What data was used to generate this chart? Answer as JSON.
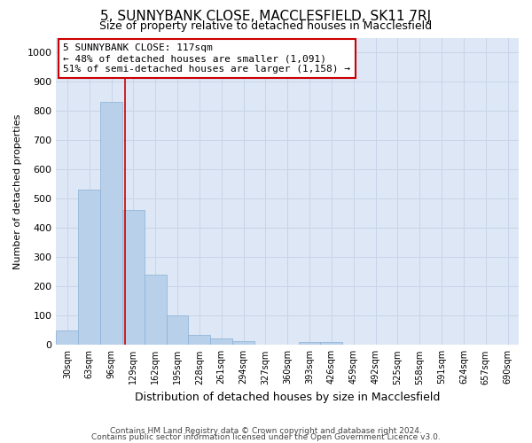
{
  "title": "5, SUNNYBANK CLOSE, MACCLESFIELD, SK11 7RJ",
  "subtitle": "Size of property relative to detached houses in Macclesfield",
  "xlabel": "Distribution of detached houses by size in Macclesfield",
  "ylabel": "Number of detached properties",
  "bin_labels": [
    "30sqm",
    "63sqm",
    "96sqm",
    "129sqm",
    "162sqm",
    "195sqm",
    "228sqm",
    "261sqm",
    "294sqm",
    "327sqm",
    "360sqm",
    "393sqm",
    "426sqm",
    "459sqm",
    "492sqm",
    "525sqm",
    "558sqm",
    "591sqm",
    "624sqm",
    "657sqm",
    "690sqm"
  ],
  "bar_values": [
    50,
    530,
    830,
    460,
    240,
    100,
    35,
    22,
    12,
    0,
    0,
    10,
    10,
    0,
    0,
    0,
    0,
    0,
    0,
    0,
    0
  ],
  "bar_color": "#b8d0ea",
  "bar_edge_color": "#8ab0d5",
  "grid_color": "#c8d4e8",
  "bg_color": "#dde7f5",
  "vline_color": "#cc0000",
  "annotation_line1": "5 SUNNYBANK CLOSE: 117sqm",
  "annotation_line2": "← 48% of detached houses are smaller (1,091)",
  "annotation_line3": "51% of semi-detached houses are larger (1,158) →",
  "annotation_box_color": "#ffffff",
  "annotation_border_color": "#cc0000",
  "ylim": [
    0,
    1050
  ],
  "yticks": [
    0,
    100,
    200,
    300,
    400,
    500,
    600,
    700,
    800,
    900,
    1000
  ],
  "footnote1": "Contains HM Land Registry data © Crown copyright and database right 2024.",
  "footnote2": "Contains public sector information licensed under the Open Government Licence v3.0.",
  "title_fontsize": 11,
  "subtitle_fontsize": 9,
  "ylabel_fontsize": 8,
  "xlabel_fontsize": 9,
  "ytick_fontsize": 8,
  "xtick_fontsize": 7
}
